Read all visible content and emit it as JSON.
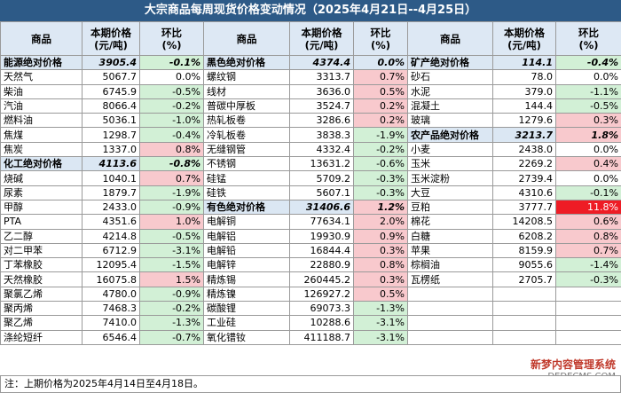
{
  "title": "大宗商品每周现货价格变动情况（2025年4月21日--4月25日）",
  "headers": {
    "item": "商品",
    "price": "本期价格\n(元/吨)",
    "change": "环比\n(%)"
  },
  "columns": [
    [
      {
        "name": "能源绝对价格",
        "price": "3905.4",
        "change": "-0.1%",
        "category": true
      },
      {
        "name": "天然气",
        "price": "5067.7",
        "change": "0.0%"
      },
      {
        "name": "柴油",
        "price": "6745.9",
        "change": "-0.5%"
      },
      {
        "name": "汽油",
        "price": "8066.4",
        "change": "-0.2%"
      },
      {
        "name": "燃料油",
        "price": "5036.1",
        "change": "-1.0%"
      },
      {
        "name": "焦煤",
        "price": "1298.7",
        "change": "-0.4%"
      },
      {
        "name": "焦炭",
        "price": "1337.0",
        "change": "0.8%"
      },
      {
        "name": "化工绝对价格",
        "price": "4113.6",
        "change": "-0.8%",
        "category": true
      },
      {
        "name": "烧碱",
        "price": "1040.1",
        "change": "0.7%"
      },
      {
        "name": "尿素",
        "price": "1879.7",
        "change": "-1.9%"
      },
      {
        "name": "甲醇",
        "price": "2433.0",
        "change": "-0.9%"
      },
      {
        "name": "PTA",
        "price": "4351.6",
        "change": "1.0%"
      },
      {
        "name": "乙二醇",
        "price": "4214.8",
        "change": "-0.5%"
      },
      {
        "name": "对二甲苯",
        "price": "6712.9",
        "change": "-3.1%"
      },
      {
        "name": "丁苯橡胶",
        "price": "12095.4",
        "change": "-1.5%"
      },
      {
        "name": "天然橡胶",
        "price": "16075.8",
        "change": "1.5%"
      },
      {
        "name": "聚氯乙烯",
        "price": "4780.0",
        "change": "-0.9%"
      },
      {
        "name": "聚丙烯",
        "price": "7468.3",
        "change": "-0.2%"
      },
      {
        "name": "聚乙烯",
        "price": "7410.0",
        "change": "-1.3%"
      },
      {
        "name": "涤纶短纤",
        "price": "6546.4",
        "change": "-0.7%"
      }
    ],
    [
      {
        "name": "黑色绝对价格",
        "price": "4374.4",
        "change": "0.0%",
        "category": true
      },
      {
        "name": "螺纹钢",
        "price": "3313.7",
        "change": "0.7%"
      },
      {
        "name": "线材",
        "price": "3636.0",
        "change": "0.5%"
      },
      {
        "name": "普碳中厚板",
        "price": "3524.7",
        "change": "0.2%"
      },
      {
        "name": "热轧板卷",
        "price": "3286.6",
        "change": "0.2%"
      },
      {
        "name": "冷轧板卷",
        "price": "3838.3",
        "change": "-1.9%"
      },
      {
        "name": "无缝钢管",
        "price": "4332.4",
        "change": "-0.2%"
      },
      {
        "name": "不锈钢",
        "price": "13631.2",
        "change": "-0.6%"
      },
      {
        "name": "硅锰",
        "price": "5709.2",
        "change": "-0.3%"
      },
      {
        "name": "硅铁",
        "price": "5607.1",
        "change": "-0.3%"
      },
      {
        "name": "有色绝对价格",
        "price": "31406.6",
        "change": "1.2%",
        "category": true
      },
      {
        "name": "电解铜",
        "price": "77634.1",
        "change": "2.0%"
      },
      {
        "name": "电解铝",
        "price": "19930.9",
        "change": "0.9%"
      },
      {
        "name": "电解铅",
        "price": "16844.4",
        "change": "0.3%"
      },
      {
        "name": "电解锌",
        "price": "22880.9",
        "change": "0.8%"
      },
      {
        "name": "精炼锡",
        "price": "260445.2",
        "change": "0.3%"
      },
      {
        "name": "精炼镍",
        "price": "126927.2",
        "change": "0.5%"
      },
      {
        "name": "碳酸锂",
        "price": "69073.3",
        "change": "-1.3%"
      },
      {
        "name": "工业硅",
        "price": "10288.6",
        "change": "-3.1%"
      },
      {
        "name": "氧化镨钕",
        "price": "411188.7",
        "change": "-3.1%"
      }
    ],
    [
      {
        "name": "矿产绝对价格",
        "price": "114.1",
        "change": "-0.4%",
        "category": true
      },
      {
        "name": "砂石",
        "price": "78.0",
        "change": "0.0%"
      },
      {
        "name": "水泥",
        "price": "379.0",
        "change": "-1.1%"
      },
      {
        "name": "混凝土",
        "price": "144.4",
        "change": "-0.5%"
      },
      {
        "name": "玻璃",
        "price": "1279.6",
        "change": "0.3%"
      },
      {
        "name": "农产品绝对价格",
        "price": "3213.7",
        "change": "1.8%",
        "category": true
      },
      {
        "name": "小麦",
        "price": "2438.0",
        "change": "0.0%"
      },
      {
        "name": "玉米",
        "price": "2269.2",
        "change": "0.4%"
      },
      {
        "name": "玉米淀粉",
        "price": "2739.4",
        "change": "0.0%"
      },
      {
        "name": "大豆",
        "price": "4310.6",
        "change": "-0.1%"
      },
      {
        "name": "豆粕",
        "price": "3777.7",
        "change": "11.8%",
        "highlight": true
      },
      {
        "name": "棉花",
        "price": "14208.5",
        "change": "0.6%"
      },
      {
        "name": "白糖",
        "price": "6208.2",
        "change": "0.8%"
      },
      {
        "name": "苹果",
        "price": "8159.9",
        "change": "0.7%"
      },
      {
        "name": "棕榈油",
        "price": "9055.6",
        "change": "-1.4%"
      },
      {
        "name": "瓦楞纸",
        "price": "2705.7",
        "change": "-0.3%"
      },
      {
        "name": "",
        "price": "",
        "change": ""
      },
      {
        "name": "",
        "price": "",
        "change": ""
      },
      {
        "name": "",
        "price": "",
        "change": ""
      },
      {
        "name": "",
        "price": "",
        "change": ""
      }
    ]
  ],
  "note": "注：上期价格为2025年4月14日至4月18日。",
  "watermark": {
    "line1": "新梦内容管理系统",
    "line2": "DEDECMS.COM"
  }
}
